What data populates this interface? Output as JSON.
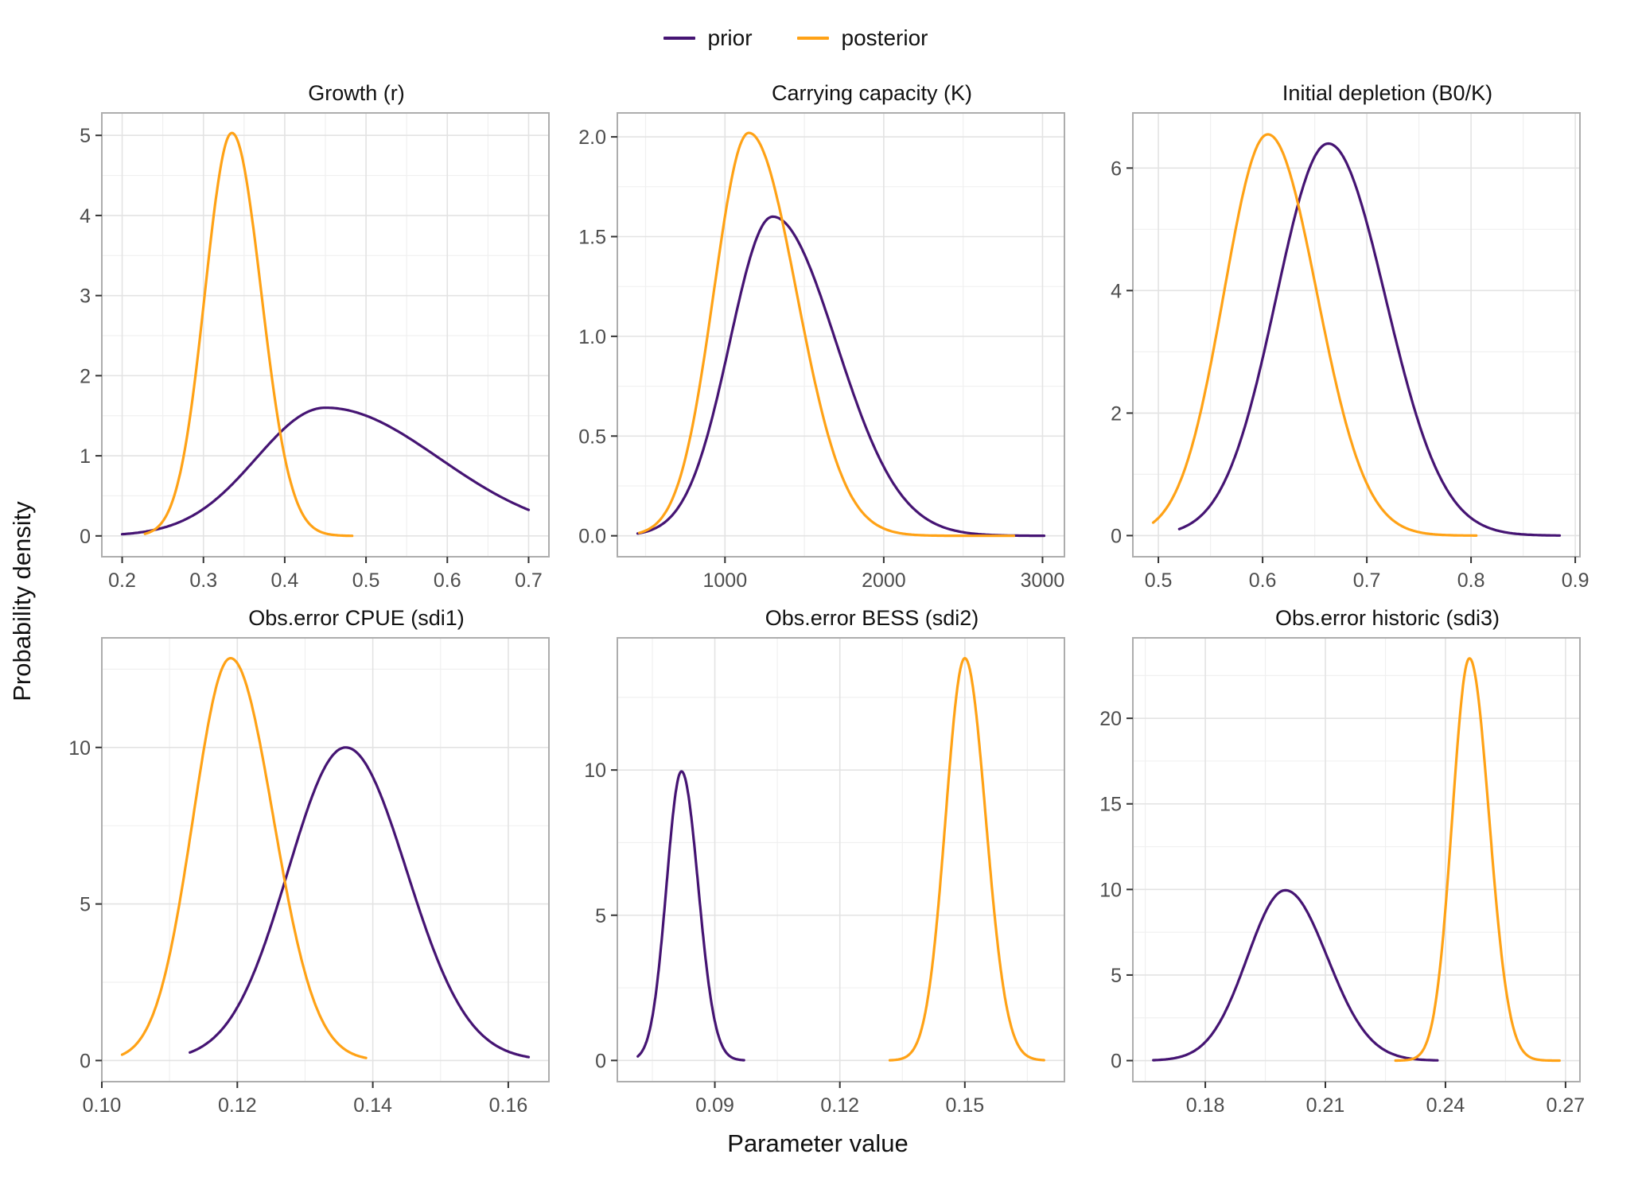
{
  "figure": {
    "x_axis_label": "Parameter value",
    "y_axis_label": "Probability density"
  },
  "legend": {
    "items": [
      {
        "name": "prior",
        "label": "prior",
        "color": "#451473"
      },
      {
        "name": "posterior",
        "label": "posterior",
        "color": "#FFA216"
      }
    ]
  },
  "style": {
    "panel_border": "#ADADAD",
    "grid_major": "#E3E3E3",
    "grid_minor": "#F0F0F0",
    "tick_color": "#333333",
    "tick_label_color": "#4D4D4D",
    "curve_width": 3.2
  },
  "chart_data": [
    {
      "type": "line",
      "title": "Growth (r)",
      "xlabel": "Parameter value",
      "ylabel": "Probability density",
      "grid": true,
      "legend_position": "top",
      "xlim": [
        0.175,
        0.725
      ],
      "ylim": [
        -0.26,
        5.28
      ],
      "xticks": {
        "values": [
          0.2,
          0.3,
          0.4,
          0.5,
          0.6,
          0.7
        ],
        "labels": [
          "0.2",
          "0.3",
          "0.4",
          "0.5",
          "0.6",
          "0.7"
        ]
      },
      "yticks": {
        "values": [
          0,
          1,
          2,
          3,
          4,
          5
        ],
        "labels": [
          "0",
          "1",
          "2",
          "3",
          "4",
          "5"
        ]
      },
      "series": [
        {
          "name": "prior",
          "curve": "density",
          "mode": 0.45,
          "peak_density": 1.6,
          "sd_left": 0.085,
          "sd_right": 0.14,
          "x_from": 0.2,
          "x_to": 0.7
        },
        {
          "name": "posterior",
          "curve": "density",
          "mode": 0.335,
          "peak_density": 5.03,
          "sd_left": 0.033,
          "sd_right": 0.036,
          "x_from": 0.228,
          "x_to": 0.483
        }
      ]
    },
    {
      "type": "line",
      "title": "Carrying capacity (K)",
      "xlabel": "Parameter value",
      "ylabel": "Probability density",
      "grid": true,
      "legend_position": "top",
      "xlim": [
        322,
        3138
      ],
      "ylim": [
        -0.105,
        2.12
      ],
      "xticks": {
        "values": [
          1000,
          2000,
          3000
        ],
        "labels": [
          "1000",
          "2000",
          "3000"
        ]
      },
      "yticks": {
        "values": [
          0,
          0.5,
          1.0,
          1.5,
          2.0
        ],
        "labels": [
          "0.0",
          "0.5",
          "1.0",
          "1.5",
          "2.0"
        ]
      },
      "series": [
        {
          "name": "prior",
          "curve": "density",
          "mode": 1300,
          "peak_density": 1.6,
          "sd_left": 270,
          "sd_right": 400,
          "x_from": 450,
          "x_to": 3010
        },
        {
          "name": "posterior",
          "curve": "density",
          "mode": 1150,
          "peak_density": 2.02,
          "sd_left": 220,
          "sd_right": 300,
          "x_from": 460,
          "x_to": 2820
        }
      ]
    },
    {
      "type": "line",
      "title": "Initial depletion (B0/K)",
      "xlabel": "Parameter value",
      "ylabel": "Probability density",
      "grid": true,
      "legend_position": "top",
      "xlim": [
        0.4755,
        0.9045
      ],
      "ylim": [
        -0.345,
        6.9
      ],
      "xticks": {
        "values": [
          0.5,
          0.6,
          0.7,
          0.8,
          0.9
        ],
        "labels": [
          "0.5",
          "0.6",
          "0.7",
          "0.8",
          "0.9"
        ]
      },
      "yticks": {
        "values": [
          0,
          2,
          4,
          6
        ],
        "labels": [
          "0",
          "2",
          "4",
          "6"
        ]
      },
      "series": [
        {
          "name": "prior",
          "curve": "density",
          "mode": 0.663,
          "peak_density": 6.4,
          "sd_left": 0.05,
          "sd_right": 0.055,
          "x_from": 0.52,
          "x_to": 0.885
        },
        {
          "name": "posterior",
          "curve": "density",
          "mode": 0.605,
          "peak_density": 6.55,
          "sd_left": 0.042,
          "sd_right": 0.047,
          "x_from": 0.495,
          "x_to": 0.805
        }
      ]
    },
    {
      "type": "line",
      "title": "Obs.error CPUE (sdi1)",
      "xlabel": "Parameter value",
      "ylabel": "Probability density",
      "grid": true,
      "legend_position": "top",
      "xlim": [
        0.1,
        0.166
      ],
      "ylim": [
        -0.675,
        13.5
      ],
      "xticks": {
        "values": [
          0.1,
          0.12,
          0.14,
          0.16
        ],
        "labels": [
          "0.10",
          "0.12",
          "0.14",
          "0.16"
        ]
      },
      "yticks": {
        "values": [
          0,
          5,
          10
        ],
        "labels": [
          "0",
          "5",
          "10"
        ]
      },
      "series": [
        {
          "name": "prior",
          "curve": "density",
          "mode": 0.136,
          "peak_density": 10.0,
          "sd_left": 0.0085,
          "sd_right": 0.009,
          "x_from": 0.113,
          "x_to": 0.163
        },
        {
          "name": "posterior",
          "curve": "density",
          "mode": 0.119,
          "peak_density": 12.85,
          "sd_left": 0.0055,
          "sd_right": 0.0063,
          "x_from": 0.103,
          "x_to": 0.139
        }
      ]
    },
    {
      "type": "line",
      "title": "Obs.error BESS (sdi2)",
      "xlabel": "Parameter value",
      "ylabel": "Probability density",
      "grid": true,
      "legend_position": "top",
      "xlim": [
        0.0666,
        0.1739
      ],
      "ylim": [
        -0.73,
        14.55
      ],
      "xticks": {
        "values": [
          0.09,
          0.12,
          0.15
        ],
        "labels": [
          "0.09",
          "0.12",
          "0.15"
        ]
      },
      "yticks": {
        "values": [
          0,
          5,
          10
        ],
        "labels": [
          "0",
          "5",
          "10"
        ]
      },
      "series": [
        {
          "name": "prior",
          "curve": "density",
          "mode": 0.082,
          "peak_density": 9.95,
          "sd_left": 0.0036,
          "sd_right": 0.004,
          "x_from": 0.0715,
          "x_to": 0.097
        },
        {
          "name": "posterior",
          "curve": "density",
          "mode": 0.15,
          "peak_density": 13.85,
          "sd_left": 0.0046,
          "sd_right": 0.005,
          "x_from": 0.132,
          "x_to": 0.169
        }
      ]
    },
    {
      "type": "line",
      "title": "Obs.error historic (sdi3)",
      "xlabel": "Parameter value",
      "ylabel": "Probability density",
      "grid": true,
      "legend_position": "top",
      "xlim": [
        0.1619,
        0.2736
      ],
      "ylim": [
        -1.23,
        24.7
      ],
      "xticks": {
        "values": [
          0.18,
          0.21,
          0.24,
          0.27
        ],
        "labels": [
          "0.18",
          "0.21",
          "0.24",
          "0.27"
        ]
      },
      "yticks": {
        "values": [
          0,
          5,
          10,
          15,
          20
        ],
        "labels": [
          "0",
          "5",
          "10",
          "15",
          "20"
        ]
      },
      "series": [
        {
          "name": "prior",
          "curve": "density",
          "mode": 0.2,
          "peak_density": 9.95,
          "sd_left": 0.0095,
          "sd_right": 0.0105,
          "x_from": 0.167,
          "x_to": 0.238
        },
        {
          "name": "posterior",
          "curve": "density",
          "mode": 0.246,
          "peak_density": 23.5,
          "sd_left": 0.0043,
          "sd_right": 0.0049,
          "x_from": 0.2275,
          "x_to": 0.2685
        }
      ]
    }
  ]
}
